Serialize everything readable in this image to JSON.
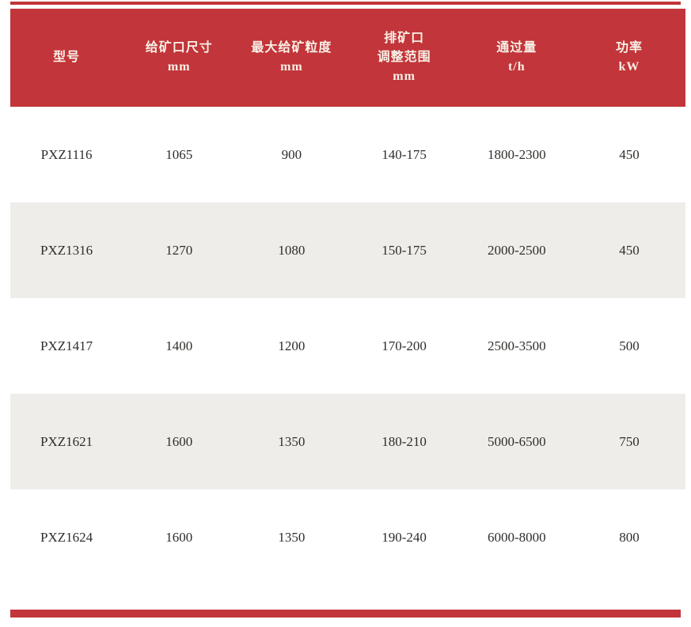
{
  "colors": {
    "accent_red": "#c2353a",
    "header_text": "#f8f1e7",
    "row_alt_bg": "#eeedea",
    "body_text": "#302e2b"
  },
  "table": {
    "columns": [
      {
        "key": "model",
        "lines": [
          "型号"
        ]
      },
      {
        "key": "feed-opening-size",
        "lines": [
          "给矿口尺寸",
          "mm"
        ]
      },
      {
        "key": "max-feed-particle-size",
        "lines": [
          "最大给矿粒度",
          "mm"
        ]
      },
      {
        "key": "discharge-opening-adjust-range",
        "lines": [
          "排矿口",
          "调整范围",
          "mm"
        ]
      },
      {
        "key": "throughput",
        "lines": [
          "通过量",
          "t/h"
        ]
      },
      {
        "key": "power",
        "lines": [
          "功率",
          "kW"
        ]
      }
    ],
    "rows": [
      {
        "cells": [
          "PXZ1116",
          "1065",
          "900",
          "140-175",
          "1800-2300",
          "450"
        ]
      },
      {
        "cells": [
          "PXZ1316",
          "1270",
          "1080",
          "150-175",
          "2000-2500",
          "450"
        ]
      },
      {
        "cells": [
          "PXZ1417",
          "1400",
          "1200",
          "170-200",
          "2500-3500",
          "500"
        ]
      },
      {
        "cells": [
          "PXZ1621",
          "1600",
          "1350",
          "180-210",
          "5000-6500",
          "750"
        ]
      },
      {
        "cells": [
          "PXZ1624",
          "1600",
          "1350",
          "190-240",
          "6000-8000",
          "800"
        ]
      }
    ]
  },
  "chart_data": {
    "type": "table",
    "columns": [
      "型号",
      "给矿口尺寸 mm",
      "最大给矿粒度 mm",
      "排矿口调整范围 mm",
      "通过量 t/h",
      "功率 kW"
    ],
    "rows": [
      [
        "PXZ1116",
        "1065",
        "900",
        "140-175",
        "1800-2300",
        "450"
      ],
      [
        "PXZ1316",
        "1270",
        "1080",
        "150-175",
        "2000-2500",
        "450"
      ],
      [
        "PXZ1417",
        "1400",
        "1200",
        "170-200",
        "2500-3500",
        "500"
      ],
      [
        "PXZ1621",
        "1600",
        "1350",
        "180-210",
        "5000-6500",
        "750"
      ],
      [
        "PXZ1624",
        "1600",
        "1350",
        "190-240",
        "6000-8000",
        "800"
      ]
    ]
  }
}
